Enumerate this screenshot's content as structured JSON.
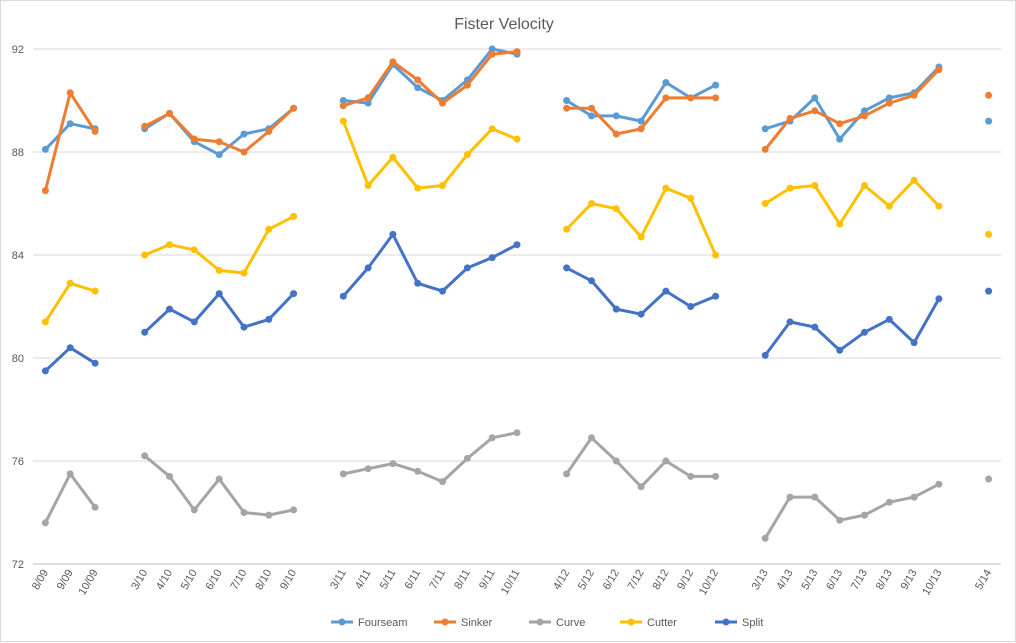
{
  "chart_data": {
    "type": "line",
    "title": "Fister Velocity",
    "xlabel": "",
    "ylabel": "",
    "ylim": [
      72,
      92
    ],
    "yticks": [
      72,
      76,
      80,
      84,
      88,
      92
    ],
    "grid": true,
    "legend_position": "bottom",
    "categories": [
      "8/09",
      "9/09",
      "10/09",
      "",
      "3/10",
      "4/10",
      "5/10",
      "6/10",
      "7/10",
      "8/10",
      "9/10",
      "",
      "3/11",
      "4/11",
      "5/11",
      "6/11",
      "7/11",
      "8/11",
      "9/11",
      "10/11",
      "",
      "4/12",
      "5/12",
      "6/12",
      "7/12",
      "8/12",
      "9/12",
      "10/12",
      "",
      "3/13",
      "4/13",
      "5/13",
      "6/13",
      "7/13",
      "8/13",
      "9/13",
      "10/13",
      "",
      "5/14"
    ],
    "series": [
      {
        "name": "Fourseam",
        "color": "#5b9bd5",
        "values": [
          88.1,
          89.1,
          88.9,
          null,
          88.9,
          89.5,
          88.4,
          87.9,
          88.7,
          88.9,
          89.7,
          null,
          90.0,
          89.9,
          91.4,
          90.5,
          90.0,
          90.8,
          92.0,
          91.8,
          null,
          90.0,
          89.4,
          89.4,
          89.2,
          90.7,
          90.1,
          90.6,
          null,
          88.9,
          89.2,
          90.1,
          88.5,
          89.6,
          90.1,
          90.3,
          91.3,
          null,
          89.2
        ]
      },
      {
        "name": "Sinker",
        "color": "#ed7d31",
        "values": [
          86.5,
          90.3,
          88.8,
          null,
          89.0,
          89.5,
          88.5,
          88.4,
          88.0,
          88.8,
          89.7,
          null,
          89.8,
          90.1,
          91.5,
          90.8,
          89.9,
          90.6,
          91.8,
          91.9,
          null,
          89.7,
          89.7,
          88.7,
          88.9,
          90.1,
          90.1,
          90.1,
          null,
          88.1,
          89.3,
          89.6,
          89.1,
          89.4,
          89.9,
          90.2,
          91.2,
          null,
          90.2
        ]
      },
      {
        "name": "Curve",
        "color": "#a5a5a5",
        "values": [
          73.6,
          75.5,
          74.2,
          null,
          76.2,
          75.4,
          74.1,
          75.3,
          74.0,
          73.9,
          74.1,
          null,
          75.5,
          75.7,
          75.9,
          75.6,
          75.2,
          76.1,
          76.9,
          77.1,
          null,
          75.5,
          76.9,
          76.0,
          75.0,
          76.0,
          75.4,
          75.4,
          null,
          73.0,
          74.6,
          74.6,
          73.7,
          73.9,
          74.4,
          74.6,
          75.1,
          null,
          75.3
        ]
      },
      {
        "name": "Cutter",
        "color": "#ffc000",
        "values": [
          81.4,
          82.9,
          82.6,
          null,
          84.0,
          84.4,
          84.2,
          83.4,
          83.3,
          85.0,
          85.5,
          null,
          89.2,
          86.7,
          87.8,
          86.6,
          86.7,
          87.9,
          88.9,
          88.5,
          null,
          85.0,
          86.0,
          85.8,
          84.7,
          86.6,
          86.2,
          84.0,
          null,
          86.0,
          86.6,
          86.7,
          85.2,
          86.7,
          85.9,
          86.9,
          85.9,
          null,
          84.8
        ]
      },
      {
        "name": "Split",
        "color": "#4472c4",
        "values": [
          79.5,
          80.4,
          79.8,
          null,
          81.0,
          81.9,
          81.4,
          82.5,
          81.2,
          81.5,
          82.5,
          null,
          82.4,
          83.5,
          84.8,
          82.9,
          82.6,
          83.5,
          83.9,
          84.4,
          null,
          83.5,
          83.0,
          81.9,
          81.7,
          82.6,
          82.0,
          82.4,
          null,
          80.1,
          81.4,
          81.2,
          80.3,
          81.0,
          81.5,
          80.6,
          82.3,
          null,
          82.6
        ]
      }
    ]
  }
}
